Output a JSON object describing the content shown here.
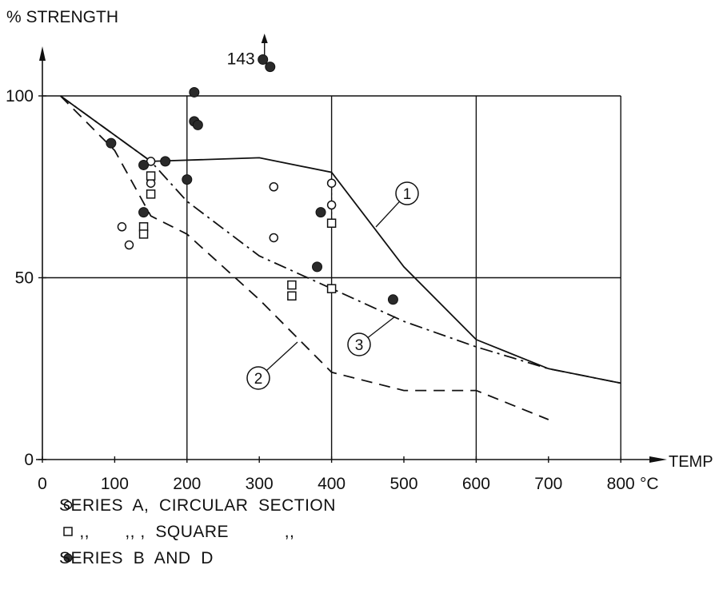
{
  "chart_data": {
    "type": "line",
    "ylabel": "% STRENGTH",
    "xlabel": "TEMP",
    "x_unit": "°C",
    "xlim": [
      0,
      800
    ],
    "ylim": [
      0,
      110
    ],
    "x_ticks": [
      0,
      100,
      200,
      300,
      400,
      500,
      600,
      700,
      800
    ],
    "y_ticks": [
      0,
      50,
      100
    ],
    "grid": true,
    "curves": [
      {
        "name": "1",
        "style": "solid",
        "points": [
          [
            25,
            100
          ],
          [
            150,
            82
          ],
          [
            300,
            83
          ],
          [
            400,
            79
          ],
          [
            500,
            53
          ],
          [
            600,
            33
          ],
          [
            700,
            25
          ],
          [
            800,
            21
          ]
        ]
      },
      {
        "name": "2",
        "style": "dashed",
        "points": [
          [
            25,
            100
          ],
          [
            100,
            85
          ],
          [
            150,
            67
          ],
          [
            200,
            62
          ],
          [
            300,
            44
          ],
          [
            400,
            24
          ],
          [
            500,
            19
          ],
          [
            600,
            19
          ],
          [
            700,
            11
          ]
        ]
      },
      {
        "name": "3",
        "style": "dash-dot",
        "points": [
          [
            25,
            100
          ],
          [
            150,
            82
          ],
          [
            200,
            71
          ],
          [
            300,
            56
          ],
          [
            400,
            47
          ],
          [
            500,
            38
          ],
          [
            600,
            31
          ],
          [
            700,
            25
          ],
          [
            800,
            21
          ]
        ]
      }
    ],
    "series": [
      {
        "name": "SERIES A, CIRCULAR SECTION",
        "marker": "open-circle",
        "points": [
          [
            110,
            64
          ],
          [
            120,
            59
          ],
          [
            150,
            82
          ],
          [
            150,
            76
          ],
          [
            320,
            75
          ],
          [
            320,
            61
          ],
          [
            400,
            76
          ],
          [
            400,
            70
          ]
        ]
      },
      {
        "name": ",, ,, , SQUARE ,,",
        "marker": "open-square",
        "points": [
          [
            140,
            64
          ],
          [
            140,
            62
          ],
          [
            150,
            78
          ],
          [
            150,
            73
          ],
          [
            345,
            48
          ],
          [
            345,
            45
          ],
          [
            400,
            65
          ],
          [
            400,
            47
          ]
        ]
      },
      {
        "name": "SERIES B AND D",
        "marker": "filled-circle",
        "points": [
          [
            95,
            87
          ],
          [
            140,
            81
          ],
          [
            140,
            68
          ],
          [
            170,
            82
          ],
          [
            200,
            77
          ],
          [
            210,
            101
          ],
          [
            210,
            93
          ],
          [
            215,
            92
          ],
          [
            380,
            53
          ],
          [
            385,
            68
          ],
          [
            485,
            44
          ],
          [
            305,
            110
          ],
          [
            315,
            108
          ]
        ]
      }
    ],
    "annotations": [
      {
        "text": "143",
        "x": 305,
        "y": 110
      },
      {
        "text": "1",
        "x": 510,
        "y": 75
      },
      {
        "text": "2",
        "x": 330,
        "y": 23
      },
      {
        "text": "3",
        "x": 430,
        "y": 31
      }
    ],
    "legend": [
      {
        "symbol": "open-circle",
        "text": "SERIES  A,  CIRCULAR  SECTION"
      },
      {
        "symbol": "open-square",
        "text": "    ,,       ,, ,  SQUARE           ,,"
      },
      {
        "symbol": "filled-circle",
        "text": "SERIES  B  AND  D"
      }
    ]
  }
}
